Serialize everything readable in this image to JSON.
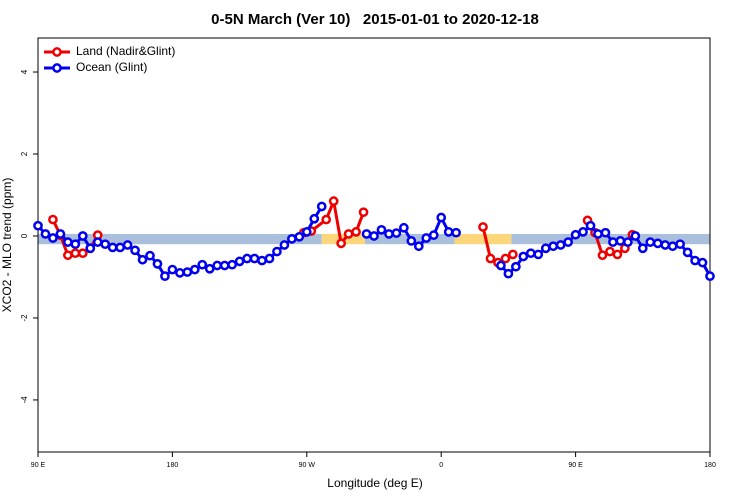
{
  "chart_data": {
    "type": "line",
    "title": "0-5N March (Ver 10)   2015-01-01 to 2020-12-18",
    "x_label": "Longitude (deg E)",
    "y_label": "XCO2 - MLO trend (ppm)",
    "xlim": [
      90,
      540
    ],
    "ylim": [
      -5.27,
      4.83
    ],
    "xticks": [
      {
        "value": 90,
        "label": "90 E"
      },
      {
        "value": 180,
        "label": "180"
      },
      {
        "value": 270,
        "label": "90 W"
      },
      {
        "value": 360,
        "label": "0"
      },
      {
        "value": 450,
        "label": "90 E"
      },
      {
        "value": 540,
        "label": "180"
      }
    ],
    "yticks": [
      -4,
      -2,
      0,
      2,
      4
    ],
    "legend": "top-left",
    "band": {
      "ylim": [
        -0.2,
        0.05
      ],
      "segments": [
        {
          "xlim": [
            90,
            280
          ],
          "color": "#a9bfdc"
        },
        {
          "xlim": [
            280,
            309
          ],
          "color": "#fbd67a"
        },
        {
          "xlim": [
            309,
            369
          ],
          "color": "#a9bfdc"
        },
        {
          "xlim": [
            369,
            407
          ],
          "color": "#fbd67a"
        },
        {
          "xlim": [
            407,
            540
          ],
          "color": "#a9bfdc"
        }
      ]
    },
    "series": [
      {
        "name": "Land (Nadir&Glint)",
        "color": "#ee0000",
        "x": [
          100,
          105,
          110,
          115,
          120,
          125,
          130,
          200,
          268,
          273,
          283,
          288,
          293,
          298,
          303,
          308,
          350,
          388,
          393,
          398,
          403,
          408,
          430,
          458,
          463,
          468,
          473,
          478,
          483,
          488
        ],
        "values": [
          0.4,
          0.02,
          -0.47,
          -0.42,
          -0.42,
          -0.3,
          0.02,
          null,
          0.08,
          0.12,
          0.4,
          0.85,
          -0.18,
          0.05,
          0.1,
          0.58,
          null,
          0.22,
          -0.55,
          -0.65,
          -0.55,
          -0.45,
          null,
          0.38,
          0.08,
          -0.47,
          -0.38,
          -0.45,
          -0.3,
          0.03
        ]
      },
      {
        "name": "Ocean (Glint)",
        "color": "#0000ee",
        "x": [
          90,
          95,
          100,
          105,
          110,
          115,
          120,
          125,
          130,
          135,
          140,
          145,
          150,
          155,
          160,
          165,
          170,
          175,
          180,
          185,
          190,
          195,
          200,
          205,
          210,
          215,
          220,
          225,
          230,
          235,
          240,
          245,
          250,
          255,
          260,
          265,
          270,
          275,
          280,
          295,
          310,
          315,
          320,
          325,
          330,
          335,
          340,
          345,
          350,
          355,
          360,
          365,
          370,
          385,
          400,
          405,
          410,
          415,
          420,
          425,
          430,
          435,
          440,
          445,
          450,
          455,
          460,
          465,
          470,
          475,
          480,
          485,
          490,
          495,
          500,
          505,
          510,
          515,
          520,
          525,
          530,
          535,
          540
        ],
        "values": [
          0.25,
          0.05,
          -0.05,
          0.05,
          -0.15,
          -0.2,
          0.0,
          -0.3,
          -0.15,
          -0.2,
          -0.28,
          -0.28,
          -0.22,
          -0.35,
          -0.58,
          -0.48,
          -0.68,
          -0.98,
          -0.82,
          -0.9,
          -0.88,
          -0.82,
          -0.7,
          -0.8,
          -0.72,
          -0.72,
          -0.7,
          -0.62,
          -0.55,
          -0.55,
          -0.6,
          -0.55,
          -0.38,
          -0.22,
          -0.07,
          -0.02,
          0.1,
          0.42,
          0.72,
          null,
          0.05,
          0.0,
          0.15,
          0.05,
          0.07,
          0.2,
          -0.12,
          -0.25,
          -0.05,
          0.02,
          0.45,
          0.1,
          0.08,
          null,
          -0.72,
          -0.92,
          -0.75,
          -0.5,
          -0.42,
          -0.45,
          -0.3,
          -0.25,
          -0.22,
          -0.15,
          0.03,
          0.1,
          0.25,
          0.05,
          0.08,
          -0.15,
          -0.12,
          -0.15,
          0.0,
          -0.3,
          -0.15,
          -0.18,
          -0.22,
          -0.25,
          -0.2,
          -0.4,
          -0.6,
          -0.65,
          -0.98
        ]
      }
    ]
  }
}
